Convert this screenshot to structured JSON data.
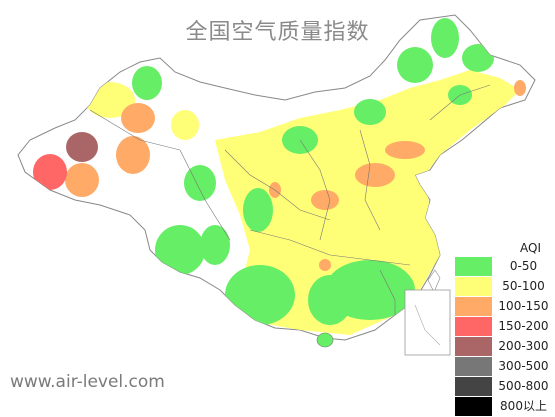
{
  "title": "全国空气质量指数",
  "website": "www.air-level.com",
  "legend": {
    "title": "AQI",
    "items": [
      {
        "label": "0-50",
        "color": "#66ee66"
      },
      {
        "label": "50-100",
        "color": "#ffff77"
      },
      {
        "label": "100-150",
        "color": "#ffaa66"
      },
      {
        "label": "150-200",
        "color": "#ff6666"
      },
      {
        "label": "200-300",
        "color": "#aa6666"
      },
      {
        "label": "300-500",
        "color": "#777777"
      },
      {
        "label": "500-800",
        "color": "#444444"
      },
      {
        "label": "800以上",
        "color": "#000000"
      }
    ]
  }
}
